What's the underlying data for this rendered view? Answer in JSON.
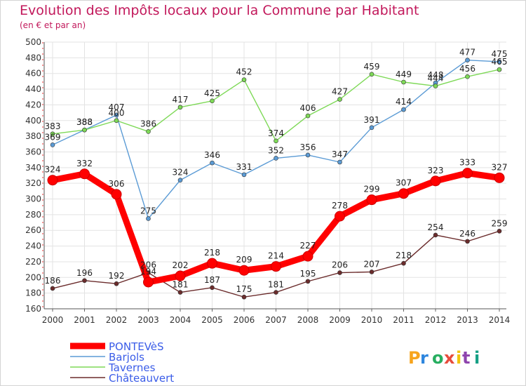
{
  "title": "Evolution des Impôts locaux pour la Commune par Habitant",
  "subtitle": "(en € et par an)",
  "logo_text": "Proxiti",
  "chart_data": {
    "type": "line",
    "x": [
      "2000",
      "2001",
      "2002",
      "2003",
      "2004",
      "2005",
      "2006",
      "2007",
      "2008",
      "2009",
      "2010",
      "2011",
      "2012",
      "2013",
      "2014"
    ],
    "ylim": [
      160,
      500
    ],
    "yticks": [
      160,
      180,
      200,
      220,
      240,
      260,
      280,
      300,
      320,
      340,
      360,
      380,
      400,
      420,
      440,
      460,
      480,
      500
    ],
    "grid": true,
    "legend_position": "bottom-left",
    "series": [
      {
        "name": "PONTEVèS",
        "color": "#ff0000",
        "values": [
          324,
          332,
          306,
          194,
          202,
          218,
          209,
          214,
          227,
          278,
          299,
          307,
          323,
          333,
          327
        ]
      },
      {
        "name": "Barjols",
        "color": "#5b9bd5",
        "values": [
          369,
          388,
          407,
          275,
          324,
          346,
          331,
          352,
          356,
          347,
          391,
          414,
          448,
          477,
          475
        ]
      },
      {
        "name": "Tavernes",
        "color": "#7ed957",
        "values": [
          383,
          388,
          400,
          386,
          417,
          425,
          452,
          374,
          406,
          427,
          459,
          449,
          444,
          456,
          465
        ]
      },
      {
        "name": "Châteauvert",
        "color": "#6b2c2c",
        "values": [
          186,
          196,
          192,
          206,
          181,
          187,
          175,
          181,
          195,
          206,
          207,
          218,
          254,
          246,
          259
        ]
      }
    ]
  }
}
